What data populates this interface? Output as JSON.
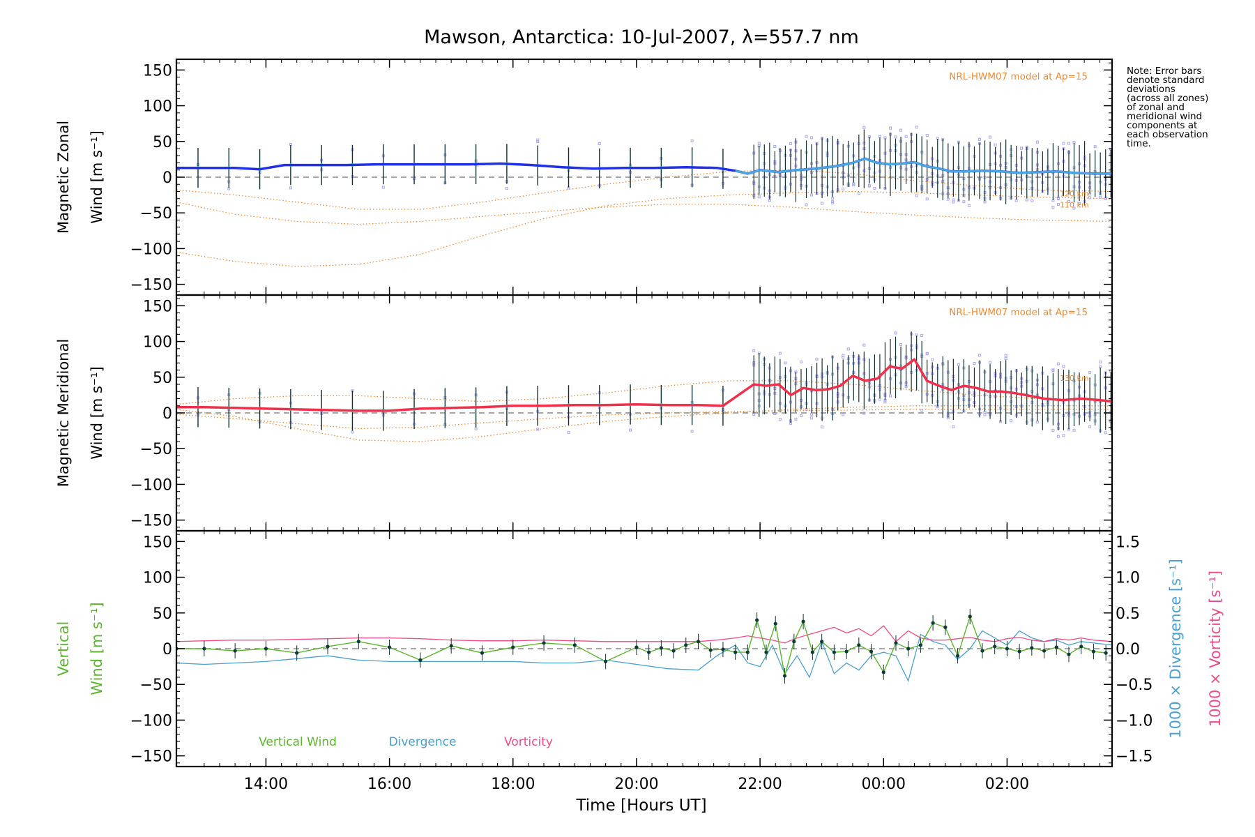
{
  "chart_data": {
    "type": "line",
    "title": "Mawson, Antarctica: 10-Jul-2007, λ=557.7 nm",
    "xlabel": "Time [Hours UT]",
    "x_ticks": [
      "14:00",
      "16:00",
      "18:00",
      "20:00",
      "22:00",
      "00:00",
      "02:00"
    ],
    "x_tick_hours": [
      14,
      16,
      18,
      20,
      22,
      24,
      26
    ],
    "xlim_hours": [
      12.55,
      27.7
    ],
    "note_lines": [
      "Note: Error bars",
      "denote standard",
      "deviations",
      "(across all zones)",
      "of zonal and",
      "meridional wind",
      "components at",
      "each observation",
      "time."
    ],
    "colors": {
      "axis": "#000000",
      "zonal_wind": "#2030e8",
      "zonal_smooth": "#4aa8e0",
      "meridional_wind": "#f0304a",
      "model": "#f08a30",
      "scatter": "#a8a8f0",
      "errorbar": "#103030",
      "vertical_wind": "#5ab62a",
      "divergence": "#4aa0d0",
      "vorticity": "#f04a8a",
      "zero_line": "#8a8a8a"
    },
    "panels": [
      {
        "id": "zonal",
        "ylabel_lines": [
          "Magnetic Zonal",
          "Wind [m s⁻¹]"
        ],
        "ylim": [
          -165,
          165
        ],
        "yticks": [
          150,
          100,
          50,
          0,
          -50,
          -100,
          -150
        ],
        "ytick_labels": [
          "150",
          "100",
          "50",
          "0",
          "−50",
          "−100",
          "−150"
        ],
        "model_label": "NRL-HWM07 model at Ap=15",
        "altitude_labels": [
          "120 km",
          "110 km"
        ],
        "wind": {
          "x": [
            12.55,
            13.0,
            13.5,
            13.9,
            14.3,
            14.8,
            15.3,
            15.8,
            16.3,
            16.8,
            17.3,
            17.8,
            18.3,
            18.8,
            19.3,
            19.8,
            20.3,
            20.8,
            21.3,
            21.6,
            21.8,
            22.0,
            22.3,
            22.6,
            22.9,
            23.2,
            23.5,
            23.7,
            23.9,
            24.1,
            24.3,
            24.5,
            24.7,
            24.9,
            25.1,
            25.3,
            25.6,
            25.9,
            26.2,
            26.5,
            26.8,
            27.1,
            27.4,
            27.7
          ],
          "y": [
            13,
            13,
            13,
            11,
            17,
            17,
            17,
            18,
            18,
            18,
            18,
            19,
            17,
            14,
            12,
            13,
            13,
            14,
            13,
            9,
            5,
            10,
            7,
            10,
            12,
            15,
            20,
            26,
            20,
            18,
            19,
            21,
            15,
            12,
            8,
            8,
            9,
            8,
            6,
            7,
            8,
            6,
            5,
            5
          ]
        },
        "model_curves": [
          {
            "x": [
              12.55,
              13.5,
              14.5,
              15.5,
              16.5,
              17.5,
              18.5,
              19.5,
              20.5,
              21.5,
              22.5,
              23.5,
              24.5,
              25.5,
              26.5,
              27.7
            ],
            "y": [
              -18,
              -25,
              -35,
              -45,
              -45,
              -35,
              -22,
              -10,
              0,
              8,
              10,
              5,
              -5,
              -12,
              -18,
              -20
            ]
          },
          {
            "x": [
              12.55,
              13.5,
              14.5,
              15.5,
              16.5,
              17.5,
              18.5,
              19.5,
              20.5,
              21.5,
              22.5,
              23.5,
              24.5,
              25.5,
              26.5,
              27.7
            ],
            "y": [
              -35,
              -52,
              -62,
              -66,
              -62,
              -55,
              -48,
              -42,
              -38,
              -38,
              -42,
              -48,
              -53,
              -57,
              -60,
              -62
            ]
          },
          {
            "x": [
              12.55,
              13.5,
              14.5,
              15.5,
              16.5,
              17.5,
              18.5,
              19.5,
              20.5,
              21.5,
              22.5,
              23.5,
              24.5,
              25.5,
              26.5,
              27.7
            ],
            "y": [
              -105,
              -118,
              -125,
              -122,
              -108,
              -82,
              -58,
              -40,
              -30,
              -25,
              -22,
              -20,
              -22,
              -25,
              -28,
              -30
            ]
          }
        ]
      },
      {
        "id": "meridional",
        "ylabel_lines": [
          "Magnetic Meridional",
          "Wind [m s⁻¹]"
        ],
        "ylim": [
          -165,
          165
        ],
        "yticks": [
          150,
          100,
          50,
          0,
          -50,
          -100,
          -150
        ],
        "ytick_labels": [
          "150",
          "100",
          "50",
          "0",
          "−50",
          "−100",
          "−150"
        ],
        "model_label": "NRL-HWM07 model at Ap=15",
        "altitude_labels": [
          "130 km"
        ],
        "wind": {
          "x": [
            12.55,
            13.0,
            13.5,
            14.0,
            14.5,
            15.0,
            15.5,
            16.0,
            16.5,
            17.0,
            17.5,
            18.0,
            18.5,
            19.0,
            19.5,
            20.0,
            20.5,
            21.0,
            21.4,
            21.7,
            21.9,
            22.1,
            22.3,
            22.5,
            22.7,
            22.9,
            23.1,
            23.3,
            23.5,
            23.7,
            23.9,
            24.1,
            24.3,
            24.5,
            24.7,
            24.9,
            25.1,
            25.3,
            25.5,
            25.7,
            25.9,
            26.1,
            26.3,
            26.6,
            26.9,
            27.2,
            27.5,
            27.7
          ],
          "y": [
            8,
            8,
            7,
            6,
            5,
            4,
            3,
            3,
            6,
            7,
            8,
            10,
            10,
            11,
            11,
            12,
            11,
            11,
            10,
            28,
            40,
            38,
            40,
            25,
            35,
            32,
            33,
            38,
            52,
            45,
            48,
            65,
            62,
            75,
            45,
            38,
            32,
            38,
            35,
            30,
            30,
            28,
            25,
            20,
            18,
            20,
            18,
            16
          ]
        },
        "model_curves": [
          {
            "x": [
              12.55,
              13.5,
              14.5,
              15.5,
              16.5,
              17.5,
              18.5,
              19.5,
              20.5,
              21.5,
              22.5,
              23.5,
              24.5,
              25.5,
              26.5,
              27.7
            ],
            "y": [
              12,
              20,
              24,
              24,
              20,
              16,
              20,
              28,
              38,
              45,
              45,
              40,
              32,
              25,
              20,
              18
            ]
          },
          {
            "x": [
              12.55,
              13.5,
              14.5,
              15.5,
              16.5,
              17.5,
              18.5,
              19.5,
              20.5,
              21.5,
              22.5,
              23.5,
              24.5,
              25.5,
              26.5,
              27.7
            ],
            "y": [
              5,
              -5,
              -22,
              -38,
              -40,
              -33,
              -22,
              -12,
              -5,
              0,
              5,
              8,
              10,
              10,
              10,
              10
            ]
          },
          {
            "x": [
              12.55,
              13.5,
              14.5,
              15.5,
              16.5,
              17.5,
              18.5,
              19.5,
              20.5,
              21.5,
              22.5,
              23.5,
              24.5,
              25.5,
              26.5,
              27.7
            ],
            "y": [
              -2,
              -8,
              -15,
              -22,
              -20,
              -14,
              -8,
              -3,
              0,
              2,
              3,
              4,
              5,
              5,
              5,
              5
            ]
          }
        ]
      },
      {
        "id": "vertical",
        "ylabel_lines": [
          "Vertical",
          "Wind [m s⁻¹]"
        ],
        "ylim": [
          -165,
          165
        ],
        "yticks": [
          150,
          100,
          50,
          0,
          -50,
          -100,
          -150
        ],
        "ytick_labels": [
          "150",
          "100",
          "50",
          "0",
          "−50",
          "−100",
          "−150"
        ],
        "right_ylim": [
          -1.65,
          1.65
        ],
        "right_yticks": [
          1.5,
          1.0,
          0.5,
          0.0,
          -0.5,
          -1.0,
          -1.5
        ],
        "right_ytick_labels": [
          "1.5",
          "1.0",
          "0.5",
          "0.0",
          "−0.5",
          "−1.0",
          "−1.5"
        ],
        "right_label_divergence": "1000 × Divergence [s⁻¹]",
        "right_label_vorticity": "1000 × Vorticity [s⁻¹]",
        "legend": [
          "Vertical Wind",
          "Divergence",
          "Vorticity"
        ],
        "vertical_wind": {
          "x": [
            12.55,
            13.0,
            13.5,
            14.0,
            14.5,
            15.0,
            15.5,
            16.0,
            16.5,
            17.0,
            17.5,
            18.0,
            18.5,
            19.0,
            19.5,
            20.0,
            20.2,
            20.4,
            20.6,
            20.8,
            21.0,
            21.2,
            21.4,
            21.6,
            21.8,
            21.95,
            22.1,
            22.25,
            22.4,
            22.55,
            22.7,
            22.85,
            23.0,
            23.2,
            23.4,
            23.6,
            23.8,
            24.0,
            24.2,
            24.4,
            24.6,
            24.8,
            25.0,
            25.2,
            25.4,
            25.6,
            25.8,
            26.0,
            26.2,
            26.4,
            26.6,
            26.8,
            27.0,
            27.2,
            27.4,
            27.6
          ],
          "y": [
            0,
            0,
            -3,
            0,
            -6,
            3,
            10,
            2,
            -16,
            4,
            -6,
            2,
            8,
            5,
            -18,
            2,
            -5,
            1,
            -3,
            5,
            10,
            -2,
            -1,
            -5,
            -5,
            40,
            -5,
            35,
            -38,
            10,
            38,
            -5,
            10,
            -5,
            -4,
            5,
            -4,
            -33,
            8,
            0,
            5,
            36,
            30,
            -10,
            45,
            -3,
            3,
            0,
            -4,
            1,
            -3,
            2,
            -8,
            3,
            -4,
            -6
          ]
        },
        "divergence": {
          "x": [
            12.55,
            13.0,
            13.5,
            14.0,
            14.5,
            15.0,
            15.5,
            16.0,
            16.5,
            17.0,
            17.5,
            18.0,
            18.5,
            19.0,
            19.5,
            20.0,
            20.5,
            21.0,
            21.3,
            21.6,
            21.8,
            22.0,
            22.2,
            22.4,
            22.6,
            22.8,
            23.0,
            23.2,
            23.4,
            23.6,
            23.8,
            24.0,
            24.2,
            24.4,
            24.6,
            24.8,
            25.0,
            25.2,
            25.4,
            25.6,
            25.8,
            26.0,
            26.2,
            26.4,
            26.6,
            26.8,
            27.0,
            27.2,
            27.4,
            27.7
          ],
          "y": [
            -0.2,
            -0.22,
            -0.2,
            -0.18,
            -0.14,
            -0.1,
            -0.16,
            -0.18,
            -0.18,
            -0.18,
            -0.18,
            -0.18,
            -0.2,
            -0.2,
            -0.16,
            -0.22,
            -0.28,
            -0.3,
            -0.1,
            0.05,
            -0.2,
            -0.25,
            0.05,
            -0.35,
            -0.1,
            -0.4,
            0.1,
            -0.35,
            -0.2,
            -0.3,
            -0.1,
            -0.05,
            -0.1,
            -0.45,
            0.2,
            0.1,
            0.05,
            -0.15,
            0.0,
            0.25,
            0.15,
            0.05,
            0.25,
            0.15,
            0.1,
            0.12,
            0.05,
            0.1,
            0.08,
            0.05
          ]
        },
        "vorticity": {
          "x": [
            12.55,
            13.0,
            13.5,
            14.0,
            14.5,
            15.0,
            15.5,
            16.0,
            16.5,
            17.0,
            17.5,
            18.0,
            18.5,
            19.0,
            19.5,
            20.0,
            20.5,
            21.0,
            21.3,
            21.6,
            21.8,
            22.0,
            22.2,
            22.4,
            22.6,
            22.8,
            23.0,
            23.2,
            23.4,
            23.6,
            23.8,
            24.0,
            24.2,
            24.4,
            24.6,
            24.8,
            25.0,
            25.2,
            25.4,
            25.6,
            25.8,
            26.0,
            26.2,
            26.4,
            26.6,
            26.8,
            27.0,
            27.2,
            27.4,
            27.7
          ],
          "y": [
            0.1,
            0.11,
            0.12,
            0.12,
            0.13,
            0.14,
            0.15,
            0.15,
            0.14,
            0.12,
            0.11,
            0.11,
            0.12,
            0.11,
            0.1,
            0.1,
            0.1,
            0.1,
            0.12,
            0.15,
            0.18,
            0.15,
            0.12,
            0.08,
            0.15,
            0.2,
            0.25,
            0.3,
            0.22,
            0.28,
            0.18,
            0.32,
            0.1,
            0.25,
            0.15,
            0.12,
            0.12,
            0.14,
            0.16,
            0.12,
            0.1,
            0.14,
            0.16,
            0.12,
            0.1,
            0.14,
            0.12,
            0.15,
            0.12,
            0.1
          ]
        }
      }
    ]
  }
}
